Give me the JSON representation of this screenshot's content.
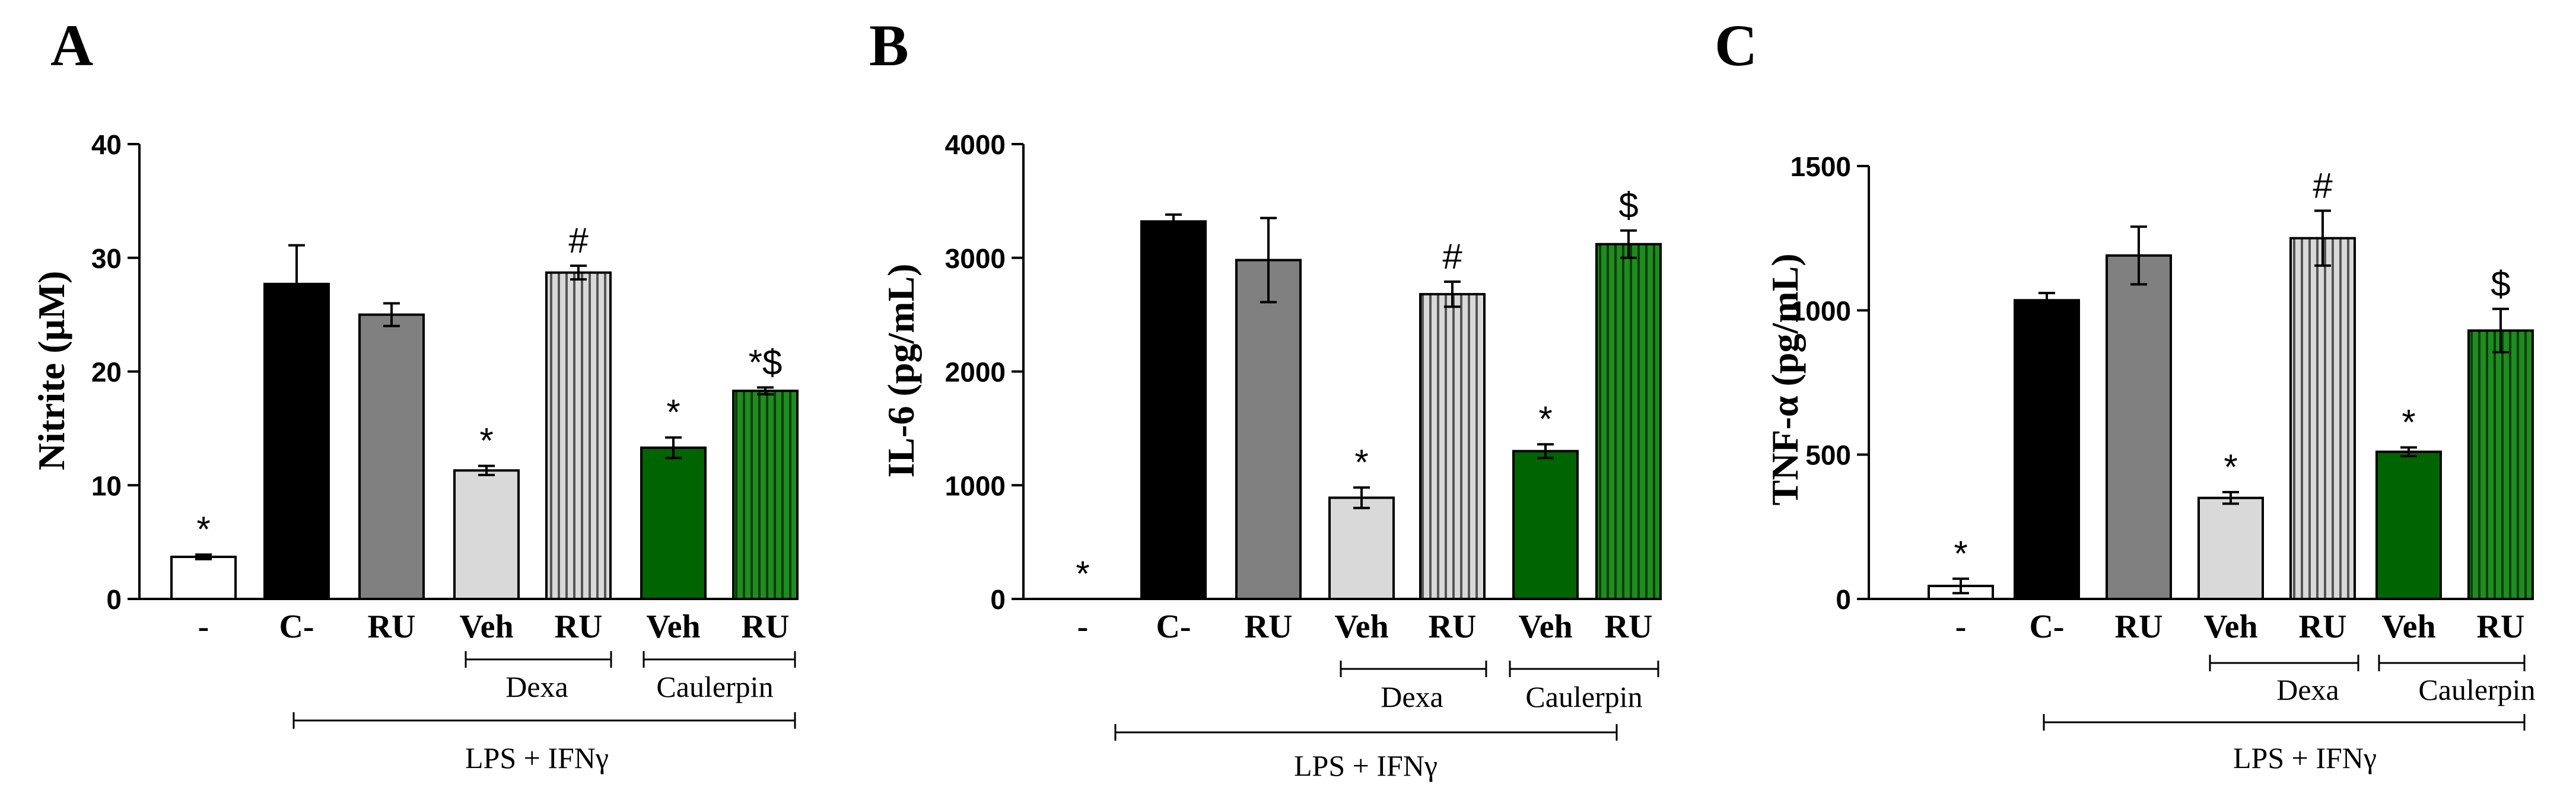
{
  "colors": {
    "white": "#ffffff",
    "black": "#000000",
    "gray": "#808080",
    "light_gray": "#d9d9d9",
    "dark_green": "#006400",
    "green": "#1e8c1e"
  },
  "groups": {
    "dexa": "Dexa",
    "caulerpin": "Caulerpin",
    "lps": "LPS + IFNγ"
  },
  "chart_data": [
    {
      "panel": "A",
      "type": "bar",
      "ylabel": "Nitrite (μM)",
      "ylim": [
        0,
        40
      ],
      "yticks": [
        0,
        10,
        20,
        30,
        40
      ],
      "categories": [
        "-",
        "C-",
        "RU",
        "Veh",
        "RU",
        "Veh",
        "RU"
      ],
      "values": [
        3.7,
        27.7,
        25.0,
        11.3,
        28.7,
        13.3,
        18.3
      ],
      "errors": [
        0.2,
        3.4,
        1.0,
        0.4,
        0.6,
        0.9,
        0.3
      ],
      "fills": [
        "white",
        "black",
        "gray",
        "light_gray",
        "light_gray_striped",
        "dark_green",
        "green_striped"
      ],
      "annotations": [
        "*",
        "",
        "",
        "*",
        "#",
        "*",
        "*$"
      ]
    },
    {
      "panel": "B",
      "type": "bar",
      "ylabel": "IL-6  (pg/mL)",
      "ylim": [
        0,
        4000
      ],
      "yticks": [
        0,
        1000,
        2000,
        3000,
        4000
      ],
      "categories": [
        "-",
        "C-",
        "RU",
        "Veh",
        "RU",
        "Veh",
        "RU"
      ],
      "values": [
        0,
        3320,
        2980,
        890,
        2680,
        1300,
        3120
      ],
      "errors": [
        0,
        60,
        370,
        90,
        110,
        60,
        120
      ],
      "fills": [
        "white",
        "black",
        "gray",
        "light_gray",
        "light_gray_striped",
        "dark_green",
        "green_striped"
      ],
      "annotations": [
        "*",
        "",
        "",
        "*",
        "#",
        "*",
        "$"
      ]
    },
    {
      "panel": "C",
      "type": "bar",
      "ylabel": "TNF-α  (pg/mL)",
      "ylim": [
        0,
        1500
      ],
      "yticks": [
        0,
        500,
        1000,
        1500
      ],
      "categories": [
        "-",
        "C-",
        "RU",
        "Veh",
        "RU",
        "Veh",
        "RU"
      ],
      "values": [
        45,
        1035,
        1190,
        350,
        1250,
        510,
        930
      ],
      "errors": [
        25,
        25,
        100,
        20,
        95,
        15,
        75
      ],
      "fills": [
        "white",
        "black",
        "gray",
        "light_gray",
        "light_gray_striped",
        "dark_green",
        "green_striped"
      ],
      "annotations": [
        "*",
        "",
        "",
        "*",
        "#",
        "*",
        "$"
      ]
    }
  ]
}
